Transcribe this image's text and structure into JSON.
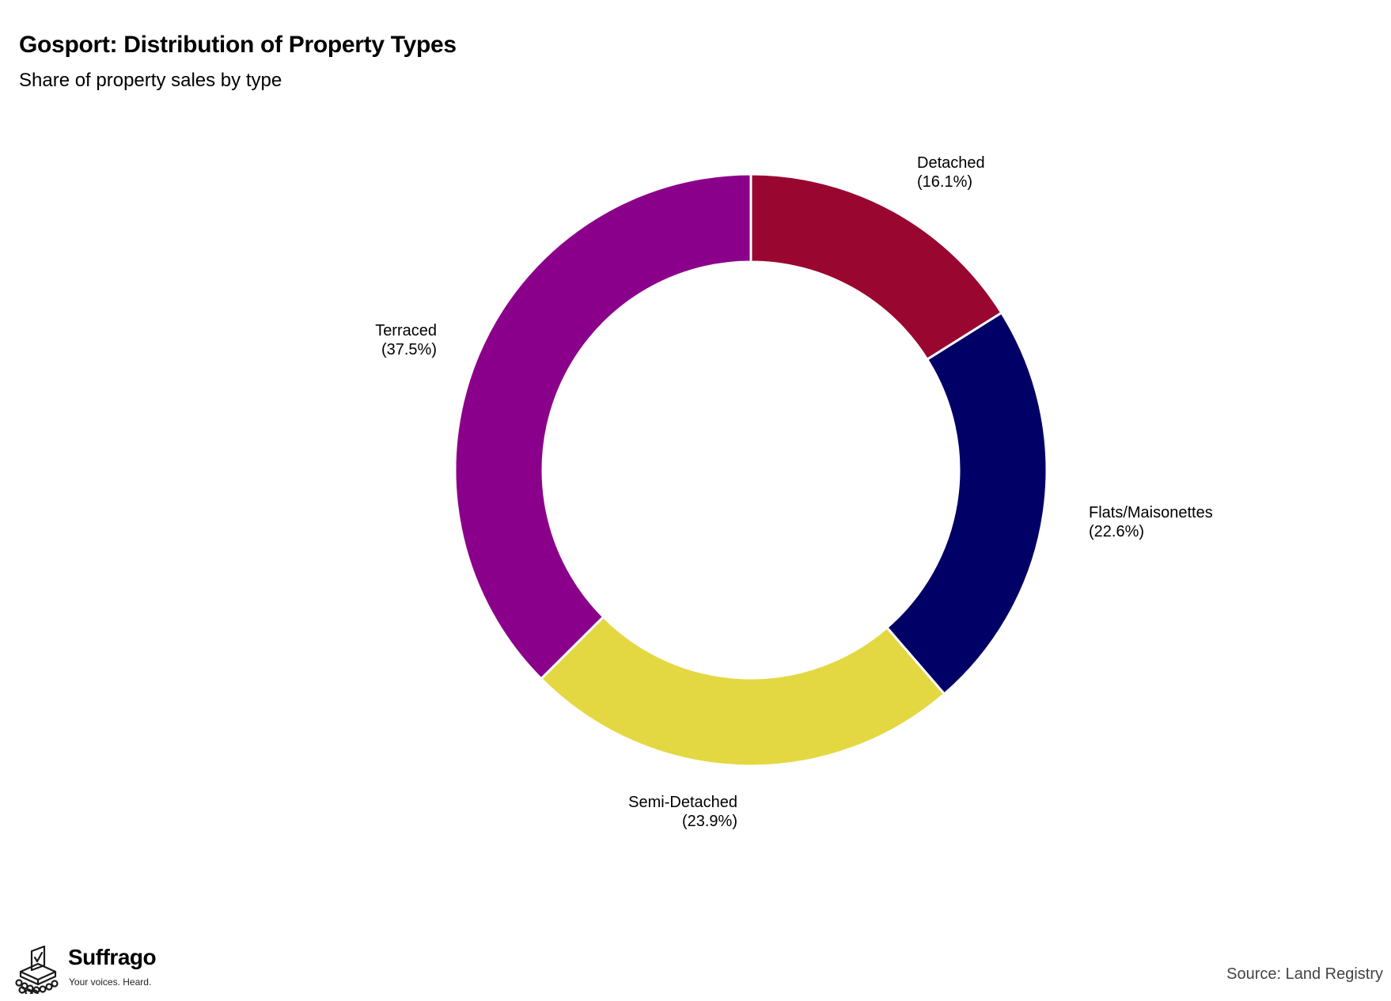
{
  "chart_data": {
    "type": "pie",
    "variant": "donut",
    "title": "Gosport: Distribution of Property Types",
    "subtitle": "Share of property sales by type",
    "slices": [
      {
        "label": "Detached",
        "value_label": "(16.1%)",
        "value": 16.1,
        "color": "#990731"
      },
      {
        "label": "Flats/Maisonettes",
        "value_label": "(22.6%)",
        "value": 22.6,
        "color": "#000066"
      },
      {
        "label": "Semi-Detached",
        "value_label": "(23.9%)",
        "value": 23.9,
        "color": "#E3D842"
      },
      {
        "label": "Terraced",
        "value_label": "(37.5%)",
        "value": 37.5,
        "color": "#8B008B"
      }
    ],
    "start_angle": "12 o'clock",
    "direction": "clockwise",
    "legend": "none (labels beside slices)"
  },
  "footer": {
    "brand_name": "Suffrago",
    "brand_tagline": "Your voices. Heard.",
    "source": "Source: Land Registry"
  }
}
